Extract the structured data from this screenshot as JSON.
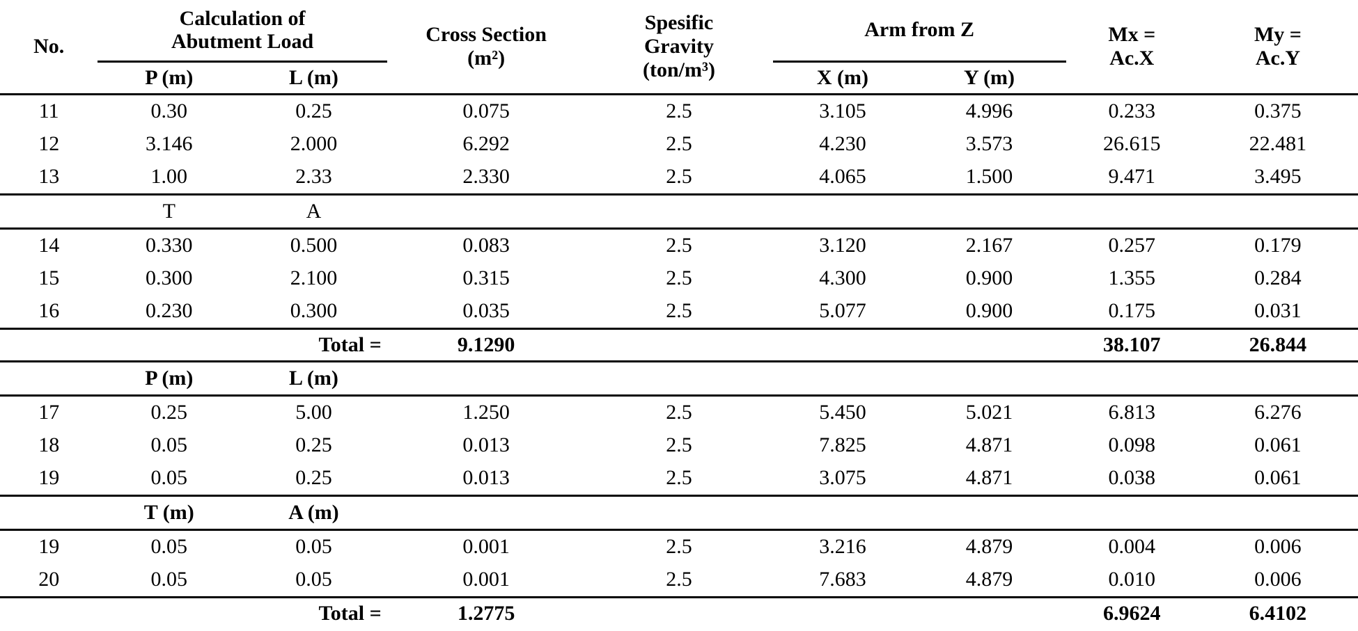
{
  "table": {
    "header": {
      "no": "No.",
      "calc_group": [
        "Calculation of",
        "Abutment Load"
      ],
      "p": "P (m)",
      "l": "L (m)",
      "cross_section": [
        "Cross Section",
        "(m²)"
      ],
      "gravity": [
        "Spesific",
        "Gravity",
        "(ton/m³)"
      ],
      "arm_group": "Arm from Z",
      "x": "X (m)",
      "y": "Y (m)",
      "mx": [
        "Mx =",
        "Ac.X"
      ],
      "my": [
        "My =",
        "Ac.Y"
      ]
    },
    "sections": [
      {
        "type": "rows",
        "rule_below": true,
        "rows": [
          {
            "no": "11",
            "p": "0.30",
            "l": "0.25",
            "cross": "0.075",
            "gravity": "2.5",
            "x": "3.105",
            "y": "4.996",
            "mx": "0.233",
            "my": "0.375"
          },
          {
            "no": "12",
            "p": "3.146",
            "l": "2.000",
            "cross": "6.292",
            "gravity": "2.5",
            "x": "4.230",
            "y": "3.573",
            "mx": "26.615",
            "my": "22.481"
          },
          {
            "no": "13",
            "p": "1.00",
            "l": "2.33",
            "cross": "2.330",
            "gravity": "2.5",
            "x": "4.065",
            "y": "1.500",
            "mx": "9.471",
            "my": "3.495"
          }
        ]
      },
      {
        "type": "subheader",
        "bold": false,
        "rule_below": true,
        "p": "T",
        "l": "A"
      },
      {
        "type": "rows",
        "rule_below": true,
        "rows": [
          {
            "no": "14",
            "p": "0.330",
            "l": "0.500",
            "cross": "0.083",
            "gravity": "2.5",
            "x": "3.120",
            "y": "2.167",
            "mx": "0.257",
            "my": "0.179"
          },
          {
            "no": "15",
            "p": "0.300",
            "l": "2.100",
            "cross": "0.315",
            "gravity": "2.5",
            "x": "4.300",
            "y": "0.900",
            "mx": "1.355",
            "my": "0.284"
          },
          {
            "no": "16",
            "p": "0.230",
            "l": "0.300",
            "cross": "0.035",
            "gravity": "2.5",
            "x": "5.077",
            "y": "0.900",
            "mx": "0.175",
            "my": "0.031"
          }
        ]
      },
      {
        "type": "total",
        "rule_below": true,
        "label": "Total =",
        "cross": "9.1290",
        "mx": "38.107",
        "my": "26.844"
      },
      {
        "type": "subheader",
        "bold": true,
        "rule_below": true,
        "p": "P (m)",
        "l": "L (m)"
      },
      {
        "type": "rows",
        "rule_below": true,
        "rows": [
          {
            "no": "17",
            "p": "0.25",
            "l": "5.00",
            "cross": "1.250",
            "gravity": "2.5",
            "x": "5.450",
            "y": "5.021",
            "mx": "6.813",
            "my": "6.276"
          },
          {
            "no": "18",
            "p": "0.05",
            "l": "0.25",
            "cross": "0.013",
            "gravity": "2.5",
            "x": "7.825",
            "y": "4.871",
            "mx": "0.098",
            "my": "0.061"
          },
          {
            "no": "19",
            "p": "0.05",
            "l": "0.25",
            "cross": "0.013",
            "gravity": "2.5",
            "x": "3.075",
            "y": "4.871",
            "mx": "0.038",
            "my": "0.061"
          }
        ]
      },
      {
        "type": "subheader",
        "bold": true,
        "rule_below": true,
        "p": "T (m)",
        "l": "A (m)"
      },
      {
        "type": "rows",
        "rule_below": true,
        "rows": [
          {
            "no": "19",
            "p": "0.05",
            "l": "0.05",
            "cross": "0.001",
            "gravity": "2.5",
            "x": "3.216",
            "y": "4.879",
            "mx": "0.004",
            "my": "0.006"
          },
          {
            "no": "20",
            "p": "0.05",
            "l": "0.05",
            "cross": "0.001",
            "gravity": "2.5",
            "x": "7.683",
            "y": "4.879",
            "mx": "0.010",
            "my": "0.006"
          }
        ]
      },
      {
        "type": "total",
        "rule_below": false,
        "label": "Total =",
        "cross": "1.2775",
        "mx": "6.9624",
        "my": "6.4102"
      }
    ]
  }
}
